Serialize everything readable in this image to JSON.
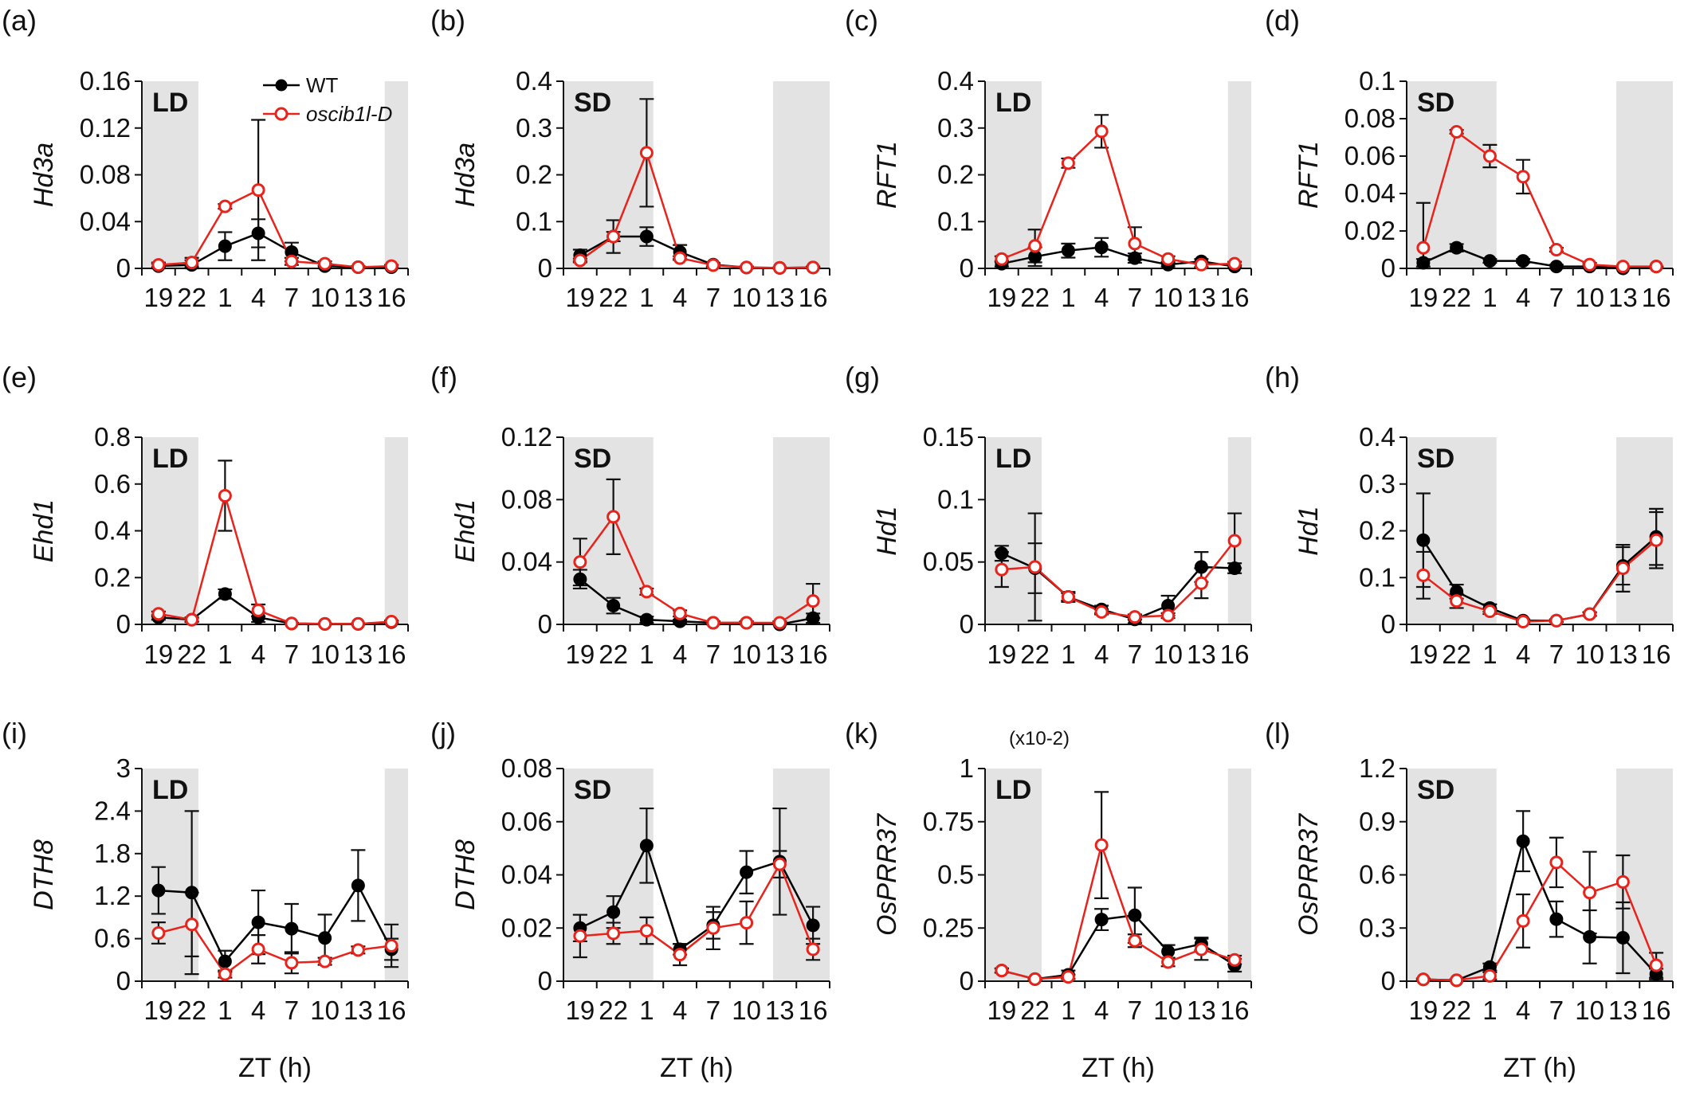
{
  "x_tick_labels": [
    "19",
    "22",
    "1",
    "4",
    "7",
    "10",
    "13",
    "16"
  ],
  "x_axis_label": "ZT (h)",
  "legend": {
    "wt": "WT",
    "mutant": "oscib1l-D"
  },
  "colors": {
    "wt": "#000000",
    "mutant": "#e8231b",
    "dark_shading": "#e3e3e3"
  },
  "chart_data": [
    {
      "panel": "(a)",
      "type": "line",
      "gene": "Hd3a",
      "condition": "LD",
      "ylim": [
        0,
        0.16
      ],
      "yticks": [
        "0",
        "0.04",
        "0.08",
        "0.12",
        "0.16"
      ],
      "dark_periods": [
        [
          0,
          1.7
        ],
        [
          7.3,
          8
        ]
      ],
      "series": [
        {
          "name": "WT",
          "values": [
            0.002,
            0.003,
            0.019,
            0.03,
            0.014,
            0.002,
            0.001,
            0.001
          ],
          "errors": [
            0.002,
            0.004,
            0.012,
            0.012,
            0.008,
            0.002,
            0.001,
            0.002
          ]
        },
        {
          "name": "oscib1l-D",
          "values": [
            0.003,
            0.005,
            0.053,
            0.067,
            0.006,
            0.004,
            0.001,
            0.002
          ],
          "errors": [
            0.002,
            0.004,
            0.002,
            0.06,
            0.003,
            0.002,
            0.001,
            0.001
          ]
        }
      ]
    },
    {
      "panel": "(b)",
      "type": "line",
      "gene": "Hd3a",
      "condition": "SD",
      "ylim": [
        0,
        0.4
      ],
      "yticks": [
        "0",
        "0.1",
        "0.2",
        "0.3",
        "0.4"
      ],
      "dark_periods": [
        [
          0,
          2.7
        ],
        [
          6.3,
          8
        ]
      ],
      "series": [
        {
          "name": "WT",
          "values": [
            0.028,
            0.068,
            0.068,
            0.035,
            0.008,
            0.002,
            0.001,
            0.002
          ],
          "errors": [
            0.012,
            0.035,
            0.02,
            0.015,
            0.004,
            0.002,
            0.001,
            0.002
          ]
        },
        {
          "name": "oscib1l-D",
          "values": [
            0.017,
            0.068,
            0.247,
            0.022,
            0.007,
            0.002,
            0.001,
            0.002
          ],
          "errors": [
            0.004,
            0.01,
            0.115,
            0.004,
            0.003,
            0.002,
            0.001,
            0.001
          ]
        }
      ]
    },
    {
      "panel": "(c)",
      "type": "line",
      "gene": "RFT1",
      "condition": "LD",
      "ylim": [
        0,
        0.4
      ],
      "yticks": [
        "0",
        "0.1",
        "0.2",
        "0.3",
        "0.4"
      ],
      "dark_periods": [
        [
          0,
          1.7
        ],
        [
          7.3,
          8
        ]
      ],
      "series": [
        {
          "name": "WT",
          "values": [
            0.01,
            0.025,
            0.038,
            0.045,
            0.022,
            0.008,
            0.015,
            0.004
          ],
          "errors": [
            0.006,
            0.02,
            0.015,
            0.02,
            0.01,
            0.004,
            0.005,
            0.003
          ]
        },
        {
          "name": "oscib1l-D",
          "values": [
            0.02,
            0.048,
            0.225,
            0.293,
            0.053,
            0.02,
            0.008,
            0.01
          ],
          "errors": [
            0.006,
            0.035,
            0.01,
            0.035,
            0.035,
            0.006,
            0.005,
            0.004
          ]
        }
      ]
    },
    {
      "panel": "(d)",
      "type": "line",
      "gene": "RFT1",
      "condition": "SD",
      "ylim": [
        0,
        0.1
      ],
      "yticks": [
        "0",
        "0.02",
        "0.04",
        "0.06",
        "0.08",
        "0.1"
      ],
      "dark_periods": [
        [
          0,
          2.7
        ],
        [
          6.3,
          8
        ]
      ],
      "series": [
        {
          "name": "WT",
          "values": [
            0.003,
            0.011,
            0.004,
            0.004,
            0.001,
            0.001,
            0.0,
            0.001
          ],
          "errors": [
            0.002,
            0.002,
            0.001,
            0.001,
            0.001,
            0.001,
            0.0,
            0.0
          ]
        },
        {
          "name": "oscib1l-D",
          "values": [
            0.011,
            0.073,
            0.06,
            0.049,
            0.01,
            0.002,
            0.001,
            0.001
          ],
          "errors": [
            0.024,
            0.001,
            0.006,
            0.009,
            0.001,
            0.001,
            0.0,
            0.0
          ]
        }
      ]
    },
    {
      "panel": "(e)",
      "type": "line",
      "gene": "Ehd1",
      "condition": "LD",
      "ylim": [
        0,
        0.8
      ],
      "yticks": [
        "0",
        "0.2",
        "0.4",
        "0.6",
        "0.8"
      ],
      "dark_periods": [
        [
          0,
          1.7
        ],
        [
          7.3,
          8
        ]
      ],
      "series": [
        {
          "name": "WT",
          "values": [
            0.03,
            0.02,
            0.13,
            0.03,
            0.004,
            0.002,
            0.002,
            0.01
          ],
          "errors": [
            0.01,
            0.01,
            0.02,
            0.02,
            0.003,
            0.002,
            0.002,
            0.005
          ]
        },
        {
          "name": "oscib1l-D",
          "values": [
            0.045,
            0.02,
            0.55,
            0.06,
            0.004,
            0.002,
            0.002,
            0.012
          ],
          "errors": [
            0.01,
            0.008,
            0.15,
            0.025,
            0.003,
            0.002,
            0.002,
            0.005
          ]
        }
      ]
    },
    {
      "panel": "(f)",
      "type": "line",
      "gene": "Ehd1",
      "condition": "SD",
      "ylim": [
        0,
        0.12
      ],
      "yticks": [
        "0",
        "0.04",
        "0.08",
        "0.12"
      ],
      "dark_periods": [
        [
          0,
          2.7
        ],
        [
          6.3,
          8
        ]
      ],
      "series": [
        {
          "name": "WT",
          "values": [
            0.029,
            0.012,
            0.003,
            0.002,
            0.001,
            0.001,
            0.0,
            0.004
          ],
          "errors": [
            0.006,
            0.005,
            0.002,
            0.001,
            0.001,
            0.001,
            0.0,
            0.003
          ]
        },
        {
          "name": "oscib1l-D",
          "values": [
            0.04,
            0.069,
            0.021,
            0.007,
            0.001,
            0.001,
            0.001,
            0.015
          ],
          "errors": [
            0.015,
            0.024,
            0.002,
            0.002,
            0.001,
            0.001,
            0.001,
            0.011
          ]
        }
      ]
    },
    {
      "panel": "(g)",
      "type": "line",
      "gene": "Hd1",
      "condition": "LD",
      "ylim": [
        0,
        0.15
      ],
      "yticks": [
        "0",
        "0.05",
        "0.1",
        "0.15"
      ],
      "dark_periods": [
        [
          0,
          1.7
        ],
        [
          7.3,
          8
        ]
      ],
      "series": [
        {
          "name": "WT",
          "values": [
            0.057,
            0.045,
            0.022,
            0.012,
            0.004,
            0.015,
            0.046,
            0.045
          ],
          "errors": [
            0.006,
            0.02,
            0.004,
            0.003,
            0.003,
            0.008,
            0.012,
            0.004
          ]
        },
        {
          "name": "oscib1l-D",
          "values": [
            0.044,
            0.046,
            0.022,
            0.01,
            0.006,
            0.007,
            0.033,
            0.067
          ],
          "errors": [
            0.014,
            0.043,
            0.003,
            0.002,
            0.002,
            0.002,
            0.012,
            0.022
          ]
        }
      ]
    },
    {
      "panel": "(h)",
      "type": "line",
      "gene": "Hd1",
      "condition": "SD",
      "ylim": [
        0,
        0.4
      ],
      "yticks": [
        "0",
        "0.1",
        "0.2",
        "0.3",
        "0.4"
      ],
      "dark_periods": [
        [
          0,
          2.7
        ],
        [
          6.3,
          8
        ]
      ],
      "series": [
        {
          "name": "WT",
          "values": [
            0.18,
            0.07,
            0.035,
            0.008,
            0.008,
            0.022,
            0.125,
            0.187
          ],
          "errors": [
            0.1,
            0.015,
            0.008,
            0.003,
            0.003,
            0.004,
            0.04,
            0.06
          ]
        },
        {
          "name": "oscib1l-D",
          "values": [
            0.105,
            0.05,
            0.028,
            0.006,
            0.008,
            0.022,
            0.12,
            0.18
          ],
          "errors": [
            0.05,
            0.015,
            0.006,
            0.002,
            0.003,
            0.004,
            0.05,
            0.06
          ]
        }
      ]
    },
    {
      "panel": "(i)",
      "type": "line",
      "gene": "DTH8",
      "condition": "LD",
      "ylim": [
        0,
        3
      ],
      "yticks": [
        "0",
        "0.6",
        "1.2",
        "1.8",
        "2.4",
        "3"
      ],
      "dark_periods": [
        [
          0,
          1.7
        ],
        [
          7.3,
          8
        ]
      ],
      "series": [
        {
          "name": "WT",
          "values": [
            1.28,
            1.25,
            0.28,
            0.83,
            0.74,
            0.61,
            1.35,
            0.45
          ],
          "errors": [
            0.33,
            1.15,
            0.15,
            0.45,
            0.35,
            0.33,
            0.5,
            0.15
          ]
        },
        {
          "name": "oscib1l-D",
          "values": [
            0.68,
            0.8,
            0.1,
            0.45,
            0.26,
            0.28,
            0.44,
            0.5
          ],
          "errors": [
            0.15,
            0.45,
            0.05,
            0.2,
            0.15,
            0.05,
            0.05,
            0.3
          ]
        }
      ]
    },
    {
      "panel": "(j)",
      "type": "line",
      "gene": "DTH8",
      "condition": "SD",
      "ylim": [
        0,
        0.08
      ],
      "yticks": [
        "0",
        "0.02",
        "0.04",
        "0.06",
        "0.08"
      ],
      "dark_periods": [
        [
          0,
          2.7
        ],
        [
          6.3,
          8
        ]
      ],
      "series": [
        {
          "name": "WT",
          "values": [
            0.02,
            0.026,
            0.051,
            0.012,
            0.021,
            0.041,
            0.045,
            0.021
          ],
          "errors": [
            0.005,
            0.006,
            0.014,
            0.002,
            0.005,
            0.008,
            0.02,
            0.007
          ]
        },
        {
          "name": "oscib1l-D",
          "values": [
            0.017,
            0.018,
            0.019,
            0.01,
            0.02,
            0.022,
            0.044,
            0.012
          ],
          "errors": [
            0.008,
            0.004,
            0.005,
            0.004,
            0.008,
            0.008,
            0.005,
            0.004
          ]
        }
      ]
    },
    {
      "panel": "(k)",
      "type": "line",
      "gene": "OsPRR37",
      "condition": "LD",
      "ylim": [
        0,
        1
      ],
      "yticks": [
        "0",
        "0.25",
        "0.5",
        "0.75",
        "1"
      ],
      "multiplier_note": "(x10-2)",
      "dark_periods": [
        [
          0,
          1.7
        ],
        [
          7.3,
          8
        ]
      ],
      "series": [
        {
          "name": "WT",
          "values": [
            0.05,
            0.01,
            0.03,
            0.29,
            0.31,
            0.14,
            0.175,
            0.075
          ],
          "errors": [
            0.01,
            0.005,
            0.02,
            0.05,
            0.13,
            0.03,
            0.03,
            0.03
          ]
        },
        {
          "name": "oscib1l-D",
          "values": [
            0.05,
            0.01,
            0.02,
            0.64,
            0.19,
            0.09,
            0.15,
            0.1
          ],
          "errors": [
            0.01,
            0.005,
            0.01,
            0.25,
            0.03,
            0.02,
            0.05,
            0.02
          ]
        }
      ]
    },
    {
      "panel": "(l)",
      "type": "line",
      "gene": "OsPRR37",
      "condition": "SD",
      "ylim": [
        0,
        1.2
      ],
      "yticks": [
        "0",
        "0.3",
        "0.6",
        "0.9",
        "1.2"
      ],
      "dark_periods": [
        [
          0,
          2.7
        ],
        [
          6.3,
          8
        ]
      ],
      "series": [
        {
          "name": "WT",
          "values": [
            0.01,
            0.005,
            0.08,
            0.79,
            0.35,
            0.25,
            0.245,
            0.04
          ],
          "errors": [
            0.005,
            0.005,
            0.02,
            0.17,
            0.1,
            0.15,
            0.2,
            0.03
          ]
        },
        {
          "name": "oscib1l-D",
          "values": [
            0.01,
            0.005,
            0.03,
            0.34,
            0.67,
            0.5,
            0.56,
            0.09
          ],
          "errors": [
            0.005,
            0.005,
            0.02,
            0.15,
            0.14,
            0.23,
            0.15,
            0.07
          ]
        }
      ]
    }
  ]
}
